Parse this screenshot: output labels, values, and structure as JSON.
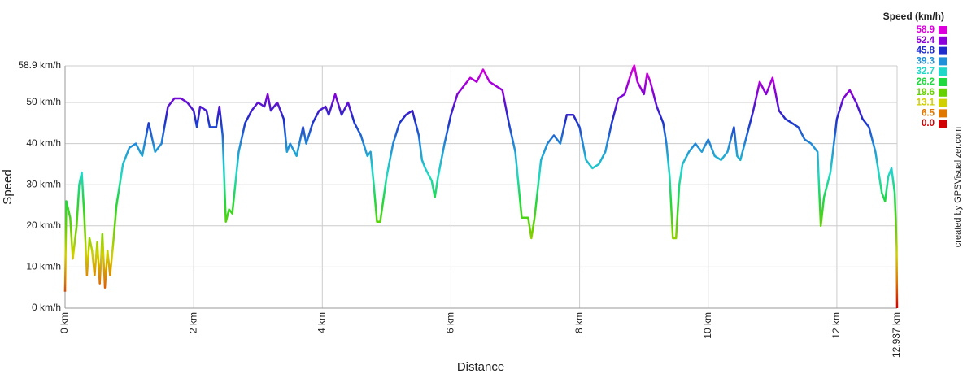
{
  "chart_data": {
    "type": "line",
    "xlabel": "Distance",
    "ylabel": "Speed",
    "credit": "created by GPSVisualizer.com",
    "xlim": [
      0,
      12.937
    ],
    "xticks": [
      {
        "value": 0,
        "label": "0 km"
      },
      {
        "value": 2,
        "label": "2 km"
      },
      {
        "value": 4,
        "label": "4 km"
      },
      {
        "value": 6,
        "label": "6 km"
      },
      {
        "value": 8,
        "label": "8 km"
      },
      {
        "value": 10,
        "label": "10 km"
      },
      {
        "value": 12,
        "label": "12 km"
      },
      {
        "value": 12.937,
        "label": "12.937 km"
      }
    ],
    "ylim": [
      0,
      58.9
    ],
    "yticks": [
      {
        "value": 0,
        "label": "0 km/h"
      },
      {
        "value": 10,
        "label": "10 km/h"
      },
      {
        "value": 20,
        "label": "20 km/h"
      },
      {
        "value": 30,
        "label": "30 km/h"
      },
      {
        "value": 40,
        "label": "40 km/h"
      },
      {
        "value": 50,
        "label": "50 km/h"
      },
      {
        "value": 58.9,
        "label": "58.9 km/h"
      }
    ],
    "grid": true,
    "legend": {
      "title": "Speed (km/h)",
      "values": [
        58.9,
        52.4,
        45.8,
        39.3,
        32.7,
        26.2,
        19.6,
        13.1,
        6.5,
        0
      ],
      "value_labels": [
        "58.9",
        "52.4",
        "45.8",
        "39.3",
        "32.7",
        "26.2",
        "19.6",
        "13.1",
        "6.5",
        "0.0"
      ],
      "colors": [
        "#dd00dd",
        "#8a00d8",
        "#1f2ccc",
        "#2090d8",
        "#20d8c8",
        "#20d840",
        "#66d000",
        "#d0d000",
        "#e07800",
        "#d00000"
      ]
    },
    "x": [
      0,
      0.02,
      0.08,
      0.12,
      0.18,
      0.22,
      0.26,
      0.3,
      0.34,
      0.38,
      0.42,
      0.46,
      0.5,
      0.54,
      0.58,
      0.62,
      0.66,
      0.7,
      0.75,
      0.8,
      0.9,
      1.0,
      1.1,
      1.2,
      1.3,
      1.4,
      1.5,
      1.6,
      1.7,
      1.8,
      1.9,
      2.0,
      2.05,
      2.1,
      2.2,
      2.25,
      2.35,
      2.4,
      2.45,
      2.5,
      2.55,
      2.6,
      2.7,
      2.8,
      2.9,
      3.0,
      3.1,
      3.15,
      3.2,
      3.3,
      3.4,
      3.45,
      3.5,
      3.6,
      3.7,
      3.75,
      3.85,
      3.95,
      4.05,
      4.1,
      4.2,
      4.3,
      4.4,
      4.5,
      4.6,
      4.7,
      4.75,
      4.8,
      4.85,
      4.9,
      5.0,
      5.1,
      5.2,
      5.3,
      5.4,
      5.5,
      5.55,
      5.6,
      5.7,
      5.75,
      5.8,
      5.9,
      6.0,
      6.1,
      6.2,
      6.3,
      6.4,
      6.5,
      6.6,
      6.7,
      6.8,
      6.9,
      7.0,
      7.1,
      7.2,
      7.25,
      7.3,
      7.4,
      7.5,
      7.6,
      7.7,
      7.8,
      7.9,
      8.0,
      8.1,
      8.2,
      8.3,
      8.4,
      8.5,
      8.6,
      8.7,
      8.8,
      8.85,
      8.9,
      9.0,
      9.05,
      9.1,
      9.2,
      9.3,
      9.35,
      9.4,
      9.45,
      9.5,
      9.55,
      9.6,
      9.7,
      9.8,
      9.9,
      10.0,
      10.1,
      10.2,
      10.3,
      10.4,
      10.45,
      10.5,
      10.6,
      10.7,
      10.8,
      10.9,
      11.0,
      11.1,
      11.2,
      11.3,
      11.4,
      11.5,
      11.6,
      11.7,
      11.75,
      11.8,
      11.9,
      12.0,
      12.1,
      12.2,
      12.3,
      12.4,
      12.5,
      12.6,
      12.7,
      12.75,
      12.8,
      12.85,
      12.9,
      12.93,
      12.937
    ],
    "values": [
      4,
      26,
      22,
      12,
      20,
      30,
      33,
      22,
      8,
      17,
      14,
      8,
      16,
      6,
      18,
      5,
      14,
      8,
      16,
      25,
      35,
      39,
      40,
      37,
      45,
      38,
      40,
      49,
      51,
      51,
      50,
      48,
      44,
      49,
      48,
      44,
      44,
      49,
      42,
      21,
      24,
      23,
      38,
      45,
      48,
      50,
      49,
      52,
      48,
      50,
      46,
      38,
      40,
      37,
      44,
      40,
      45,
      48,
      49,
      47,
      52,
      47,
      50,
      45,
      42,
      37,
      38,
      30,
      21,
      21,
      32,
      40,
      45,
      47,
      48,
      42,
      36,
      34,
      31,
      27,
      32,
      40,
      47,
      52,
      54,
      56,
      55,
      58,
      55,
      54,
      53,
      45,
      38,
      22,
      22,
      17,
      22,
      36,
      40,
      42,
      40,
      47,
      47,
      44,
      36,
      34,
      35,
      38,
      45,
      51,
      52,
      57,
      59,
      55,
      52,
      57,
      55,
      49,
      45,
      40,
      32,
      17,
      17,
      30,
      35,
      38,
      40,
      38,
      41,
      37,
      36,
      38,
      44,
      37,
      36,
      42,
      48,
      55,
      52,
      56,
      48,
      46,
      45,
      44,
      41,
      40,
      38,
      20,
      27,
      33,
      46,
      51,
      53,
      50,
      46,
      44,
      38,
      28,
      26,
      32,
      34,
      28,
      15,
      0
    ]
  }
}
